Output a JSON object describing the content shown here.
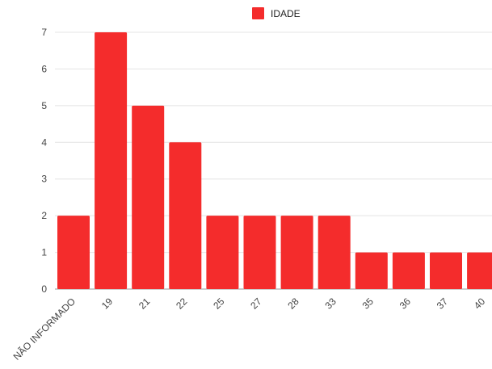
{
  "chart_data": {
    "type": "bar",
    "categories": [
      "NÃO INFORMADO",
      "19",
      "21",
      "22",
      "25",
      "27",
      "28",
      "33",
      "35",
      "36",
      "37",
      "40"
    ],
    "series": [
      {
        "name": "IDADE",
        "values": [
          2,
          7,
          5,
          4,
          2,
          2,
          2,
          2,
          1,
          1,
          1,
          1
        ],
        "color": "#f42c2c"
      }
    ],
    "ylim": [
      0,
      7
    ],
    "yticks": [
      0,
      1,
      2,
      3,
      4,
      5,
      6,
      7
    ],
    "grid": true,
    "legend_position": "top-center"
  }
}
